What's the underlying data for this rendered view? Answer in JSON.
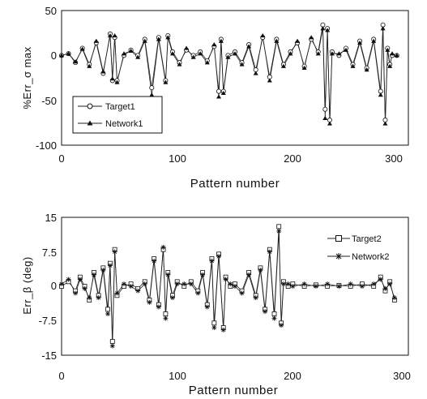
{
  "chart_data": [
    {
      "type": "line",
      "xlabel": "Pattern number",
      "ylabel": "%Err_σ max",
      "xlim": [
        0,
        300
      ],
      "ylim": [
        -100,
        50
      ],
      "xticks": [
        "0",
        "100",
        "200",
        "300"
      ],
      "yticks": [
        "50",
        "0",
        "-50",
        "-100"
      ],
      "grid": false,
      "legend_position": "bottom-left",
      "x": [
        0,
        6,
        12,
        18,
        24,
        30,
        36,
        42,
        44,
        46,
        48,
        54,
        60,
        66,
        72,
        78,
        84,
        90,
        92,
        96,
        102,
        108,
        114,
        120,
        126,
        132,
        136,
        138,
        140,
        144,
        150,
        156,
        162,
        168,
        174,
        180,
        186,
        192,
        198,
        204,
        210,
        216,
        222,
        226,
        228,
        230,
        232,
        234,
        240,
        246,
        252,
        258,
        264,
        270,
        276,
        278,
        280,
        282,
        284,
        286,
        290
      ],
      "series": [
        {
          "name": "Target1",
          "marker": "circle",
          "values": [
            0,
            2,
            -8,
            8,
            -10,
            14,
            -20,
            24,
            -28,
            20,
            -28,
            0,
            6,
            0,
            18,
            -36,
            20,
            -28,
            22,
            4,
            -8,
            6,
            0,
            4,
            -6,
            10,
            -40,
            18,
            -40,
            0,
            4,
            -8,
            12,
            -16,
            20,
            -24,
            18,
            -10,
            4,
            14,
            -12,
            18,
            4,
            34,
            -60,
            30,
            -72,
            4,
            0,
            8,
            -10,
            16,
            -14,
            18,
            -40,
            34,
            -72,
            8,
            -10,
            0,
            0
          ]
        },
        {
          "name": "Network1",
          "marker": "triangle",
          "values": [
            0,
            2,
            -7,
            7,
            -12,
            16,
            -18,
            22,
            -26,
            22,
            -30,
            2,
            5,
            -2,
            16,
            -44,
            18,
            -30,
            20,
            2,
            -10,
            8,
            -2,
            2,
            -8,
            12,
            -46,
            16,
            -42,
            -2,
            2,
            -10,
            10,
            -20,
            22,
            -28,
            16,
            -12,
            2,
            16,
            -14,
            20,
            2,
            30,
            -70,
            28,
            -76,
            2,
            2,
            6,
            -12,
            14,
            -16,
            16,
            -44,
            30,
            -76,
            6,
            -12,
            2,
            0
          ]
        }
      ]
    },
    {
      "type": "line",
      "xlabel": "Pattern number",
      "ylabel": "Err_β (deg)",
      "xlim": [
        0,
        300
      ],
      "ylim": [
        -15,
        15
      ],
      "xticks": [
        "0",
        "100",
        "200",
        "300"
      ],
      "yticks": [
        "15",
        "7.5",
        "0",
        "-7.5",
        "-15"
      ],
      "grid": false,
      "legend_position": "top-right",
      "x": [
        0,
        6,
        12,
        16,
        20,
        24,
        28,
        32,
        36,
        40,
        42,
        44,
        46,
        48,
        54,
        60,
        66,
        72,
        76,
        80,
        84,
        88,
        90,
        92,
        96,
        100,
        106,
        112,
        118,
        122,
        126,
        130,
        132,
        136,
        140,
        142,
        146,
        150,
        156,
        162,
        168,
        172,
        176,
        180,
        184,
        188,
        190,
        192,
        196,
        200,
        210,
        220,
        230,
        240,
        250,
        260,
        270,
        276,
        280,
        284,
        288
      ],
      "series": [
        {
          "name": "Target2",
          "marker": "square",
          "values": [
            0,
            1,
            -1,
            2,
            0,
            -3,
            3,
            -2,
            4,
            -5,
            5,
            -12,
            8,
            -2,
            0,
            0.5,
            -0.5,
            1,
            -3,
            6,
            -4,
            8,
            -6,
            3,
            -2,
            1,
            0,
            1,
            -1,
            3,
            -4,
            6,
            -8,
            7,
            -9,
            2,
            0,
            0.5,
            -1,
            3,
            -2,
            4,
            -5,
            8,
            -6,
            13,
            -8,
            1,
            0,
            0.5,
            0,
            0.3,
            0,
            0.2,
            0,
            0.5,
            0,
            2,
            -1,
            1,
            -3
          ]
        },
        {
          "name": "Network2",
          "marker": "asterisk",
          "values": [
            0.5,
            1.5,
            -1.5,
            1.5,
            -0.5,
            -2.5,
            2.5,
            -2.5,
            3.5,
            -6,
            4.5,
            -13,
            7.5,
            -1.5,
            0.5,
            0,
            -1,
            0.5,
            -3.5,
            5.5,
            -4.5,
            8.5,
            -7,
            2.5,
            -2.5,
            0.5,
            0.5,
            0.5,
            -1.5,
            2.5,
            -4.5,
            5.5,
            -9,
            6.5,
            -9.5,
            1.5,
            0.5,
            0,
            -1.5,
            2.5,
            -2.5,
            3.5,
            -5.5,
            7.5,
            -7,
            12,
            -8.5,
            0.5,
            0.5,
            0,
            0.5,
            0,
            0.5,
            0,
            0.5,
            0,
            0.5,
            1.5,
            -0.5,
            0.5,
            -2.5
          ]
        }
      ]
    }
  ]
}
